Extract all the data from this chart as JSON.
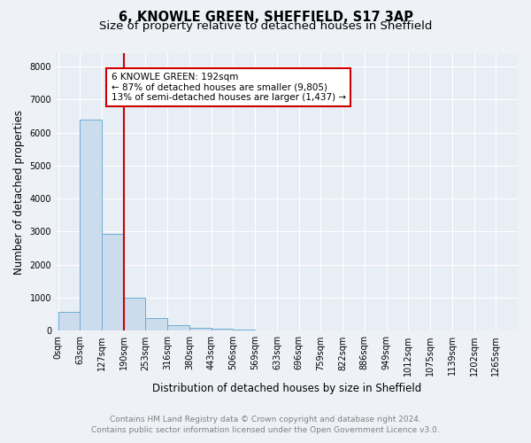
{
  "title": "6, KNOWLE GREEN, SHEFFIELD, S17 3AP",
  "subtitle": "Size of property relative to detached houses in Sheffield",
  "xlabel": "Distribution of detached houses by size in Sheffield",
  "ylabel": "Number of detached properties",
  "bar_labels": [
    "0sqm",
    "63sqm",
    "127sqm",
    "190sqm",
    "253sqm",
    "316sqm",
    "380sqm",
    "443sqm",
    "506sqm",
    "569sqm",
    "633sqm",
    "696sqm",
    "759sqm",
    "822sqm",
    "886sqm",
    "949sqm",
    "1012sqm",
    "1075sqm",
    "1139sqm",
    "1202sqm",
    "1265sqm"
  ],
  "bar_values": [
    560,
    6380,
    2920,
    1000,
    375,
    160,
    95,
    55,
    30,
    5,
    2,
    1,
    0,
    0,
    0,
    0,
    0,
    0,
    0,
    0,
    0
  ],
  "bar_color": "#ccdcec",
  "bar_edge_color": "#6baed6",
  "ylim": [
    0,
    8400
  ],
  "yticks": [
    0,
    1000,
    2000,
    3000,
    4000,
    5000,
    6000,
    7000,
    8000
  ],
  "red_line_x": 3.0,
  "red_line_color": "#cc0000",
  "annotation_text": "6 KNOWLE GREEN: 192sqm\n← 87% of detached houses are smaller (9,805)\n13% of semi-detached houses are larger (1,437) →",
  "annotation_box_color": "#ffffff",
  "annotation_box_edge": "#cc0000",
  "footer_line1": "Contains HM Land Registry data © Crown copyright and database right 2024.",
  "footer_line2": "Contains public sector information licensed under the Open Government Licence v3.0.",
  "footer_color": "#808080",
  "bg_color": "#eef2f7",
  "plot_bg_color": "#e8eef5",
  "grid_color": "#ffffff",
  "title_fontsize": 10.5,
  "subtitle_fontsize": 9.5,
  "axis_label_fontsize": 8.5,
  "tick_fontsize": 7,
  "footer_fontsize": 6.5,
  "annotation_fontsize": 7.5
}
